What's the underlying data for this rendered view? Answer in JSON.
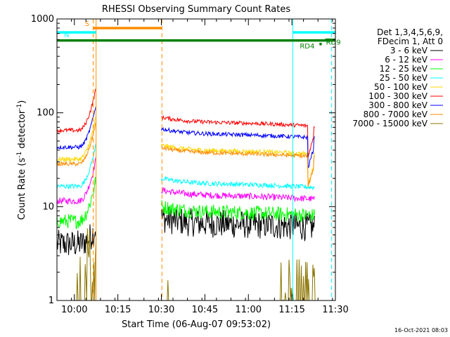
{
  "chart_data": {
    "type": "line",
    "title": "RHESSI Observing Summary Count Rates",
    "xlabel": "Start Time (06-Aug-07 09:53:02)",
    "ylabel_main": "Count Rate (s",
    "ylabel_sup1": "-1",
    "ylabel_mid": " detector",
    "ylabel_sup2": "-1",
    "ylabel_end": ")",
    "yscale": "log",
    "ylim": [
      1,
      1000
    ],
    "xlim_minutes": [
      -6,
      90
    ],
    "x_ticks": [
      {
        "m": 0,
        "label": "10:00"
      },
      {
        "m": 15,
        "label": "10:15"
      },
      {
        "m": 30,
        "label": "10:30"
      },
      {
        "m": 45,
        "label": "10:45"
      },
      {
        "m": 60,
        "label": "11:00"
      },
      {
        "m": 75,
        "label": "11:15"
      },
      {
        "m": 90,
        "label": "11:30"
      }
    ],
    "y_ticks": [
      {
        "v": 1,
        "label": "1"
      },
      {
        "v": 10,
        "label": "10"
      },
      {
        "v": 100,
        "label": "100"
      },
      {
        "v": 1000,
        "label": "1000"
      }
    ],
    "legend": {
      "header1": "Det 1,3,4,5,6,9,",
      "header2": "FDecim 1, Att 0",
      "entries": [
        {
          "label": "3 - 6 keV",
          "color": "#000000"
        },
        {
          "label": "6 - 12 keV",
          "color": "#ff00ff"
        },
        {
          "label": "12 - 25 keV",
          "color": "#00ff00"
        },
        {
          "label": "25 - 50 keV",
          "color": "#00ffff"
        },
        {
          "label": "50 - 100 keV",
          "color": "#ffd700"
        },
        {
          "label": "100 - 300 keV",
          "color": "#ff0000"
        },
        {
          "label": "300 - 800 keV",
          "color": "#0000ff"
        },
        {
          "label": "800 - 7000 keV",
          "color": "#ff8c00"
        },
        {
          "label": "7000 - 15000 keV",
          "color": "#8b7500"
        }
      ]
    },
    "segments": [
      [
        -6,
        7.5
      ],
      [
        30,
        83
      ]
    ],
    "series": [
      {
        "name": "3 - 6 keV",
        "color": "#000000",
        "level": 6.0,
        "jitter": 0.35,
        "start": 4.0
      },
      {
        "name": "6 - 12 keV",
        "color": "#ff00ff",
        "level": 12.0,
        "jitter": 0.08,
        "start": 11.5
      },
      {
        "name": "12 - 25 keV",
        "color": "#00ff00",
        "level": 8.0,
        "jitter": 0.18,
        "start": 7.0
      },
      {
        "name": "25 - 50 keV",
        "color": "#00ffff",
        "level": 16.0,
        "jitter": 0.06,
        "start": 16.5
      },
      {
        "name": "50 - 100 keV",
        "color": "#ffd700",
        "level": 36.0,
        "jitter": 0.06,
        "start": 32.0
      },
      {
        "name": "100 - 300 keV",
        "color": "#ff0000",
        "level": 72.0,
        "jitter": 0.05,
        "start": 65.0
      },
      {
        "name": "300 - 800 keV",
        "color": "#0000ff",
        "level": 54.0,
        "jitter": 0.05,
        "start": 43.0
      },
      {
        "name": "800 - 7000 keV",
        "color": "#ff8c00",
        "level": 34.0,
        "jitter": 0.05,
        "start": 28.5
      },
      {
        "name": "7000 - 15000 keV",
        "color": "#8b7500",
        "level": 1.0,
        "jitter": 0.0,
        "start": 1.0
      }
    ],
    "vlines": [
      {
        "m": -6,
        "color": "#00ffff",
        "dash": false
      },
      {
        "m": 6.5,
        "color": "#ff8c00",
        "dash": true
      },
      {
        "m": 7.5,
        "color": "#ff8c00",
        "dash": false
      },
      {
        "m": 30.2,
        "color": "#ff8c00",
        "dash": true
      },
      {
        "m": 75.3,
        "color": "#00ffff",
        "dash": false
      },
      {
        "m": 88.7,
        "color": "#00ffff",
        "dash": true
      }
    ],
    "bars": [
      {
        "label": "S",
        "color": "#ff8c00",
        "start": 6.5,
        "end": 30.2,
        "value": 800
      },
      {
        "label": "N",
        "color": "#00ffff",
        "start": -6,
        "end": 7.5,
        "value": 720
      },
      {
        "label": "",
        "color": "#00ffff",
        "start": 75.3,
        "end": 90,
        "value": 720
      },
      {
        "label": "",
        "color": "#008000",
        "start": -6,
        "end": 90,
        "value": 590
      },
      {
        "label": "RD9",
        "color": "#008000",
        "start": 86.5,
        "end": 90,
        "value": 600
      },
      {
        "label": "RD4",
        "color": "#008000",
        "start": 84.5,
        "end": 85.3,
        "value": 540
      }
    ],
    "footer_date": "16-Oct-2021 08:03"
  }
}
